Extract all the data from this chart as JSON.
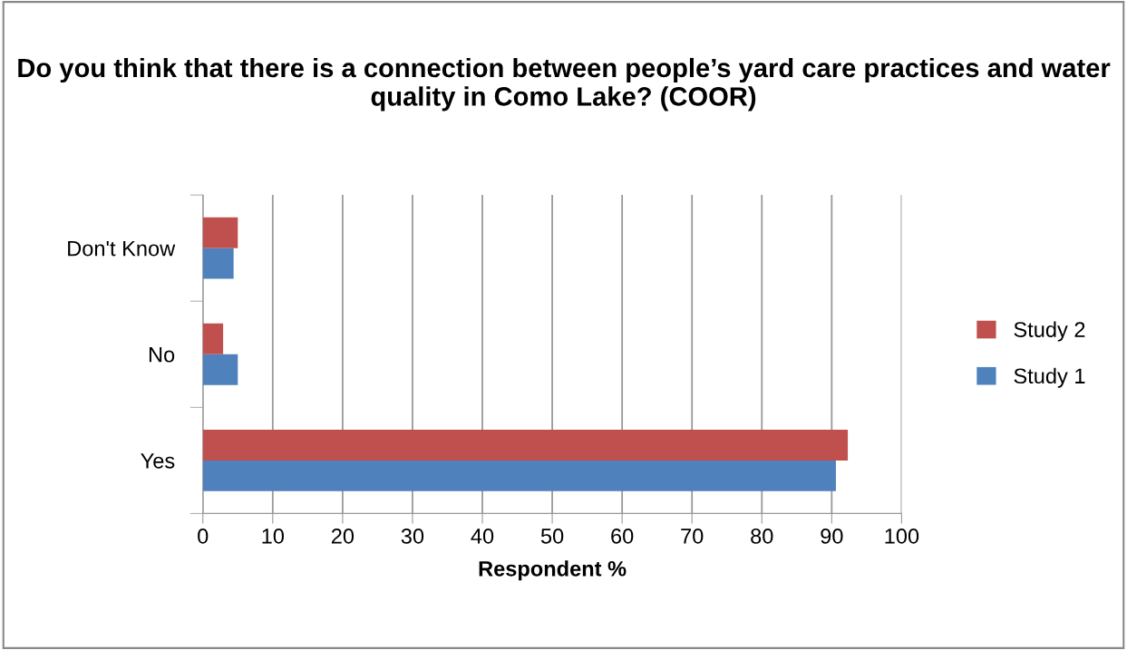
{
  "chart_data": {
    "type": "bar",
    "orientation": "horizontal",
    "title": "Do you think that there is a connection between people’s yard care practices and water quality in Como Lake? (COOR)",
    "xlabel": "Respondent %",
    "categories": [
      "Don't Know",
      "No",
      "Yes"
    ],
    "series": [
      {
        "name": "Study 1",
        "color": "#4f81bd",
        "values": [
          4.4,
          5,
          90.6
        ]
      },
      {
        "name": "Study 2",
        "color": "#c0504d",
        "values": [
          5,
          2.9,
          92.3
        ]
      }
    ],
    "xlim": [
      0,
      100
    ],
    "xticks": [
      0,
      10,
      20,
      30,
      40,
      50,
      60,
      70,
      80,
      90,
      100
    ],
    "grid": "x",
    "legend": "right"
  }
}
